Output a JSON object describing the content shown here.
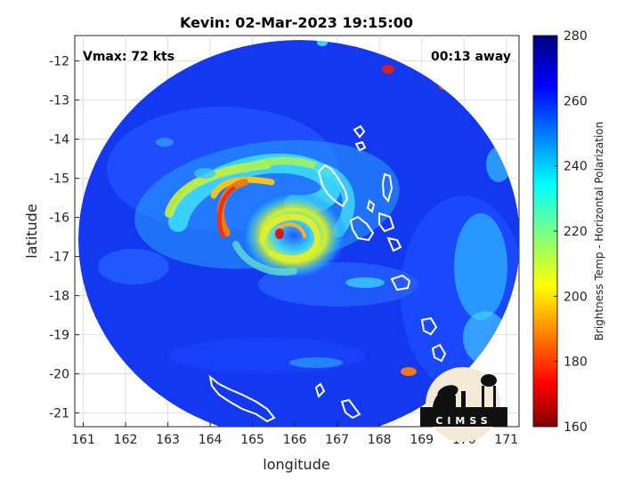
{
  "title": "Kevin: 02-Mar-2023 19:15:00",
  "vmax_label": "Vmax: 72 kts",
  "time_label": "00:13 away",
  "x_axis": {
    "label": "longitude",
    "min": 160.8,
    "max": 171.3,
    "ticks": [
      "161",
      "162",
      "163",
      "164",
      "165",
      "166",
      "167",
      "168",
      "169",
      "170",
      "171"
    ]
  },
  "y_axis": {
    "label": "latitude",
    "min": -21.35,
    "max": -11.35,
    "ticks": [
      "-12",
      "-13",
      "-14",
      "-15",
      "-16",
      "-17",
      "-18",
      "-19",
      "-20",
      "-21"
    ]
  },
  "colorbar": {
    "label": "Brightness Temp - Horizontal Polarization",
    "min": 160,
    "max": 280,
    "ticks": [
      "280",
      "260",
      "240",
      "220",
      "200",
      "180",
      "160"
    ]
  },
  "storm_center": {
    "lon": 165.55,
    "lat": -16.55
  },
  "grid": true,
  "logo_text": "CIMSS",
  "colors": {
    "background_cold": "#0f3be6",
    "eye": "#d81818"
  }
}
